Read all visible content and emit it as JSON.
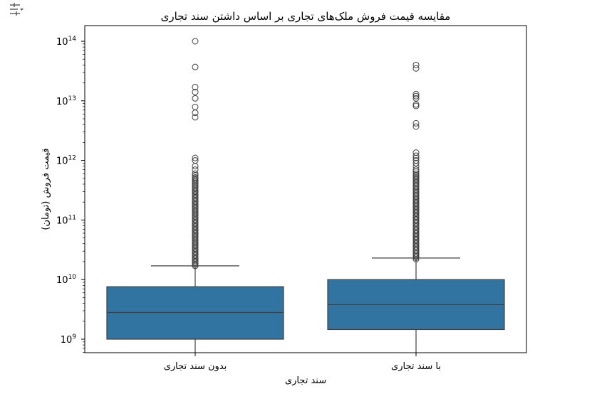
{
  "chart_data": {
    "type": "box",
    "title": "مقایسه قیمت فروش ملک‌های تجاری بر اساس داشتن سند تجاری",
    "xlabel": "سند تجاری",
    "ylabel": "قیمت فروش (تومان)",
    "yscale": "log",
    "ylim": [
      600000000,
      180000000000000
    ],
    "yticks": [
      {
        "value": 1000000000,
        "label": "10^9"
      },
      {
        "value": 10000000000,
        "label": "10^10"
      },
      {
        "value": 100000000000,
        "label": "10^11"
      },
      {
        "value": 1000000000000,
        "label": "10^12"
      },
      {
        "value": 10000000000000,
        "label": "10^13"
      },
      {
        "value": 100000000000000,
        "label": "10^14"
      }
    ],
    "categories": [
      "بدون سند تجاری",
      "با سند تجاری"
    ],
    "color": "#3274a1",
    "series": [
      {
        "category": "بدون سند تجاری",
        "whisker_low": 600000000,
        "q1": 1000000000,
        "median": 2800000000,
        "q3": 7600000000,
        "whisker_high": 17000000000,
        "outlier_cluster": [
          17000000000,
          500000000000
        ],
        "outliers": [
          520000000000,
          560000000000,
          600000000000,
          700000000000,
          800000000000,
          1000000000000,
          1100000000000,
          5300000000000,
          6300000000000,
          7900000000000,
          11000000000000,
          14000000000000,
          17000000000000,
          37000000000000,
          100000000000000
        ]
      },
      {
        "category": "با سند تجاری",
        "whisker_low": 600000000,
        "q1": 1450000000,
        "median": 3800000000,
        "q3": 10000000000,
        "whisker_high": 23000000000,
        "outlier_cluster": [
          22000000000,
          600000000000
        ],
        "outliers": [
          650000000000,
          700000000000,
          800000000000,
          900000000000,
          1000000000000,
          1100000000000,
          1200000000000,
          1350000000000,
          3700000000000,
          4200000000000,
          8200000000000,
          8700000000000,
          11000000000000,
          12000000000000,
          13000000000000,
          35000000000000,
          40000000000000
        ]
      }
    ]
  }
}
